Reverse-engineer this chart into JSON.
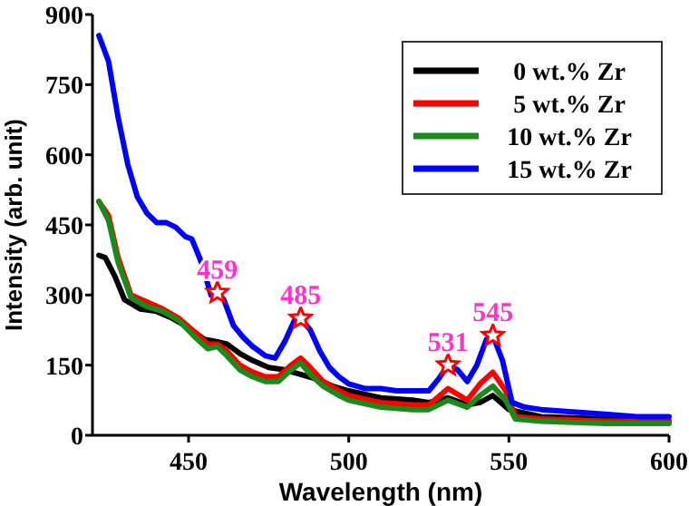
{
  "chart_data": {
    "type": "line",
    "xlabel": "Wavelength (nm)",
    "ylabel": "Intensity (arb. unit)",
    "xlim": [
      420,
      600
    ],
    "xticks": [
      450,
      500,
      550,
      600
    ],
    "ylim": [
      0,
      900
    ],
    "yticks": [
      0,
      150,
      300,
      450,
      600,
      750,
      900
    ],
    "legend": "top right",
    "grid": false,
    "marker": "none",
    "line_style": "solid",
    "series": [
      {
        "name": "0 wt.% Zr",
        "color": "#000000",
        "x": [
          422,
          424,
          427,
          430,
          435,
          440,
          445,
          450,
          455,
          459,
          462,
          466,
          470,
          475,
          480,
          485,
          490,
          495,
          500,
          510,
          520,
          525,
          531,
          537,
          541,
          545,
          550,
          560,
          580,
          600
        ],
        "values": [
          385,
          380,
          340,
          290,
          270,
          265,
          250,
          230,
          205,
          200,
          195,
          175,
          160,
          145,
          140,
          130,
          120,
          105,
          95,
          80,
          75,
          70,
          80,
          65,
          70,
          85,
          55,
          40,
          35,
          30
        ]
      },
      {
        "name": "5 wt.% Zr",
        "color": "#ff0000",
        "x": [
          422,
          425,
          428,
          432,
          437,
          442,
          447,
          452,
          456,
          459,
          462,
          466,
          470,
          474,
          478,
          482,
          485,
          488,
          492,
          497,
          500,
          510,
          520,
          525,
          531,
          537,
          541,
          545,
          549,
          552,
          560,
          580,
          600
        ],
        "values": [
          500,
          470,
          380,
          300,
          285,
          270,
          250,
          220,
          195,
          195,
          180,
          150,
          135,
          125,
          125,
          150,
          165,
          145,
          115,
          95,
          85,
          70,
          65,
          65,
          100,
          75,
          110,
          135,
          95,
          40,
          35,
          30,
          30
        ]
      },
      {
        "name": "10 wt.% Zr",
        "color": "#1a8a1a",
        "x": [
          422,
          425,
          428,
          432,
          437,
          442,
          447,
          452,
          456,
          459,
          462,
          466,
          470,
          474,
          478,
          482,
          485,
          488,
          492,
          497,
          500,
          510,
          520,
          525,
          531,
          537,
          541,
          545,
          549,
          552,
          560,
          580,
          600
        ],
        "values": [
          500,
          460,
          370,
          295,
          275,
          265,
          245,
          210,
          185,
          190,
          170,
          140,
          125,
          115,
          115,
          140,
          155,
          130,
          105,
          85,
          75,
          60,
          55,
          55,
          75,
          60,
          85,
          105,
          75,
          35,
          30,
          25,
          25
        ]
      },
      {
        "name": "15 wt.% Zr",
        "color": "#0000ff",
        "x": [
          422,
          425,
          428,
          431,
          434,
          437,
          440,
          443,
          446,
          449,
          451,
          454,
          457,
          459,
          461,
          464,
          467,
          470,
          474,
          477,
          480,
          483,
          485,
          488,
          491,
          494,
          497,
          500,
          505,
          510,
          515,
          520,
          525,
          528,
          531,
          534,
          537,
          540,
          543,
          545,
          548,
          551,
          555,
          560,
          570,
          580,
          590,
          600
        ],
        "values": [
          855,
          800,
          680,
          580,
          510,
          475,
          455,
          455,
          445,
          425,
          420,
          370,
          300,
          305,
          290,
          235,
          210,
          190,
          170,
          165,
          200,
          245,
          250,
          225,
          180,
          145,
          125,
          110,
          100,
          100,
          95,
          95,
          95,
          120,
          150,
          140,
          115,
          150,
          205,
          213,
          160,
          70,
          60,
          55,
          50,
          45,
          40,
          40
        ]
      },
      {
        "type": "scatter",
        "marker": "star",
        "color": "#ff0000",
        "x": [
          459,
          485,
          531,
          545
        ],
        "values": [
          305,
          250,
          150,
          213
        ]
      }
    ],
    "annotations": [
      {
        "text": "459",
        "x": 459,
        "y": 305
      },
      {
        "text": "485",
        "x": 485,
        "y": 250
      },
      {
        "text": "531",
        "x": 531,
        "y": 150
      },
      {
        "text": "545",
        "x": 545,
        "y": 213
      }
    ]
  }
}
